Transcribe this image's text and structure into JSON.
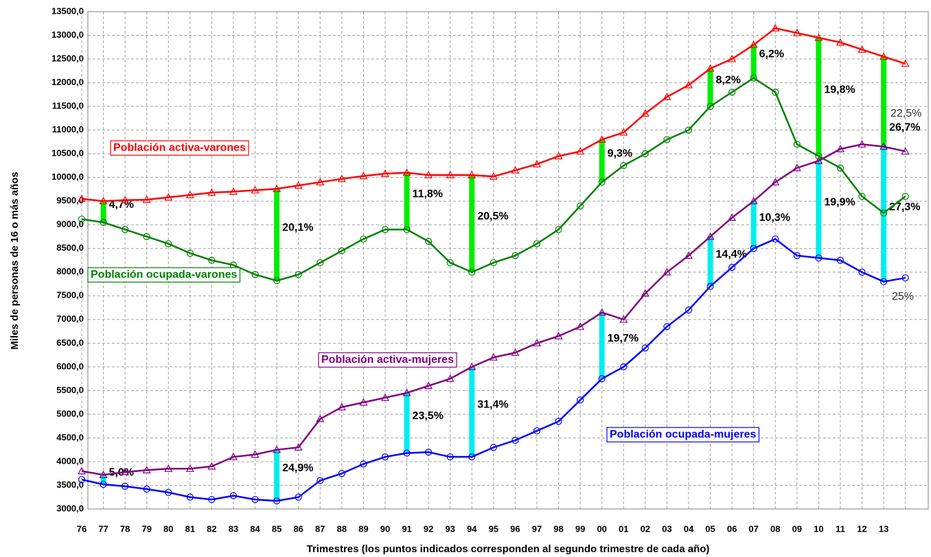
{
  "chart_data": {
    "type": "line",
    "ylabel": "Miles de personas de 16 o más años",
    "xlabel": "Trimestres (los puntos indicados corresponden al segundo trimestre de cada año)",
    "categories": [
      "76",
      "77",
      "78",
      "79",
      "80",
      "81",
      "82",
      "83",
      "84",
      "85",
      "86",
      "87",
      "88",
      "89",
      "90",
      "91",
      "92",
      "93",
      "94",
      "95",
      "96",
      "97",
      "98",
      "99",
      "00",
      "01",
      "02",
      "03",
      "04",
      "05",
      "06",
      "07",
      "08",
      "09",
      "10",
      "11",
      "12",
      "13",
      null
    ],
    "ylim": [
      3000,
      13500
    ],
    "yticks": [
      {
        "value": 3000,
        "label": "3000,0"
      },
      {
        "value": 3500,
        "label": "3500,0"
      },
      {
        "value": 4000,
        "label": "4000,0"
      },
      {
        "value": 4500,
        "label": "4500,0"
      },
      {
        "value": 5000,
        "label": "5000,0"
      },
      {
        "value": 5500,
        "label": "5500,0"
      },
      {
        "value": 6000,
        "label": "6000,0"
      },
      {
        "value": 6500,
        "label": "6500,0"
      },
      {
        "value": 7000,
        "label": "7000,0"
      },
      {
        "value": 7500,
        "label": "7500,0"
      },
      {
        "value": 8000,
        "label": "8000,0"
      },
      {
        "value": 8500,
        "label": "8500,0"
      },
      {
        "value": 9000,
        "label": "9000,0"
      },
      {
        "value": 9500,
        "label": "9500,0"
      },
      {
        "value": 10000,
        "label": "10000,0"
      },
      {
        "value": 10500,
        "label": "10500,0"
      },
      {
        "value": 11000,
        "label": "11000,0"
      },
      {
        "value": 11500,
        "label": "11500,0"
      },
      {
        "value": 12000,
        "label": "12000,0"
      },
      {
        "value": 12500,
        "label": "12500,0"
      },
      {
        "value": 13000,
        "label": "13000,0"
      },
      {
        "value": 13500,
        "label": "13500,0"
      }
    ],
    "grid": true,
    "series": [
      {
        "name": "Población activa-varones",
        "color": "#ff0000",
        "marker": "triangle",
        "values": [
          9550,
          9500,
          9520,
          9530,
          9580,
          9630,
          9680,
          9700,
          9730,
          9760,
          9830,
          9900,
          9970,
          10030,
          10080,
          10100,
          10050,
          10050,
          10050,
          10020,
          10150,
          10280,
          10450,
          10550,
          10800,
          10950,
          11350,
          11700,
          11950,
          12300,
          12500,
          12800,
          13150,
          13050,
          12950,
          12850,
          12700,
          12550,
          12400
        ]
      },
      {
        "name": "Población ocupada-varones",
        "color": "#008000",
        "marker": "circle",
        "values": [
          9120,
          9050,
          8900,
          8750,
          8600,
          8400,
          8250,
          8150,
          7950,
          7820,
          7950,
          8200,
          8450,
          8700,
          8900,
          8900,
          8650,
          8200,
          8000,
          8200,
          8350,
          8600,
          8900,
          9400,
          9900,
          10250,
          10500,
          10800,
          11000,
          11500,
          11800,
          12100,
          11800,
          10700,
          10450,
          10200,
          9600,
          9250,
          9600
        ]
      },
      {
        "name": "Población activa-mujeres",
        "color": "#800080",
        "marker": "triangle",
        "values": [
          3800,
          3720,
          3780,
          3820,
          3850,
          3850,
          3900,
          4100,
          4150,
          4250,
          4300,
          4900,
          5150,
          5250,
          5350,
          5450,
          5600,
          5750,
          6000,
          6200,
          6300,
          6500,
          6650,
          6850,
          7150,
          7000,
          7550,
          8000,
          8350,
          8750,
          9150,
          9500,
          9900,
          10200,
          10350,
          10600,
          10700,
          10650,
          10550
        ]
      },
      {
        "name": "Población ocupada-mujeres",
        "color": "#0000ff",
        "marker": "circle",
        "values": [
          3620,
          3520,
          3480,
          3420,
          3350,
          3250,
          3200,
          3280,
          3200,
          3170,
          3250,
          3600,
          3750,
          3950,
          4100,
          4180,
          4200,
          4100,
          4100,
          4300,
          4450,
          4650,
          4850,
          5300,
          5750,
          6000,
          6400,
          6850,
          7200,
          7700,
          8100,
          8500,
          8700,
          8350,
          8300,
          8250,
          8000,
          7800,
          7880
        ]
      }
    ],
    "male_rates": {
      "color": "#00ee00",
      "items": [
        {
          "x": "77",
          "text": "4,7%"
        },
        {
          "x": "85",
          "text": "20,1%"
        },
        {
          "x": "91",
          "text": "11,8%"
        },
        {
          "x": "94",
          "text": "20,5%"
        },
        {
          "x": "00",
          "text": "9,3%"
        },
        {
          "x": "05",
          "text": "8,2%"
        },
        {
          "x": "07",
          "text": "6,2%"
        },
        {
          "x": "10",
          "text": "19,8%"
        },
        {
          "x": "13",
          "text": "26,7%"
        }
      ]
    },
    "female_rates": {
      "color": "#00eeee",
      "items": [
        {
          "x": "77",
          "text": "5,0%"
        },
        {
          "x": "85",
          "text": "24,9%"
        },
        {
          "x": "91",
          "text": "23,5%"
        },
        {
          "x": "94",
          "text": "31,4%"
        },
        {
          "x": "00",
          "text": "19,7%"
        },
        {
          "x": "05",
          "text": "14,4%"
        },
        {
          "x": "07",
          "text": "10,3%"
        },
        {
          "x": "10",
          "text": "19,9%"
        },
        {
          "x": "13",
          "text": "27,3%"
        }
      ]
    },
    "end_labels": [
      "22,5%",
      "25%"
    ]
  }
}
